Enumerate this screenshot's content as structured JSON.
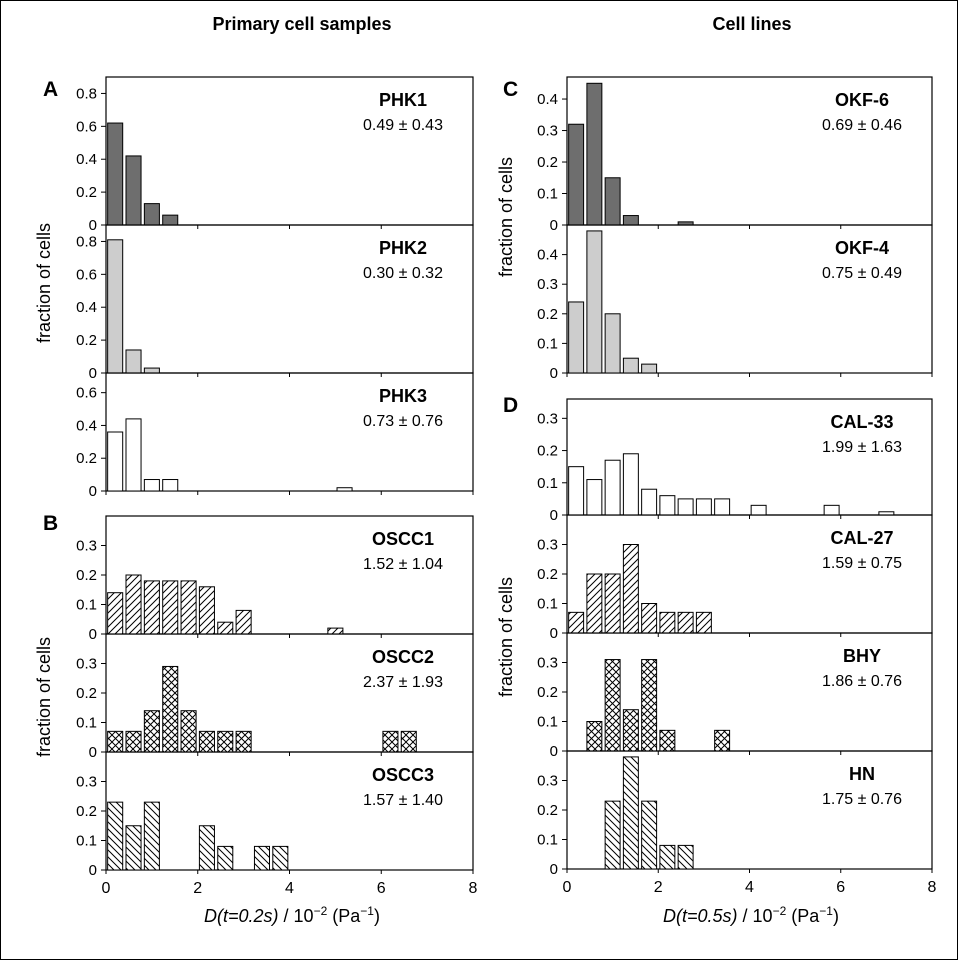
{
  "column_titles": {
    "left": "Primary cell samples",
    "right": "Cell lines"
  },
  "panel_letters": {
    "A": "A",
    "B": "B",
    "C": "C",
    "D": "D"
  },
  "ylabel": "fraction of cells",
  "xlabels": {
    "left": {
      "prefix": "D(t=0.2s)",
      "mid": " / 10",
      "exp": "−2",
      "suffix": " (Pa",
      "unit_exp": "−1",
      "close": ")"
    },
    "right": {
      "prefix": "D(t=0.5s)",
      "mid": " / 10",
      "exp": "−2",
      "suffix": " (Pa",
      "unit_exp": "−1",
      "close": ")"
    }
  },
  "x_ticks": [
    "0",
    "2",
    "4",
    "6",
    "8"
  ],
  "colors": {
    "dark": "#6e6e6e",
    "light": "#cdcdcd",
    "white": "#ffffff",
    "border": "#000000"
  },
  "chart_data": [
    {
      "type": "bar",
      "name": "PHK1",
      "stat": "0.49 ± 0.43",
      "fill": "dark",
      "group": "A",
      "bin_width": 0.4,
      "x": [
        0.2,
        0.6,
        1.0,
        1.4
      ],
      "values": [
        0.62,
        0.42,
        0.13,
        0.06
      ],
      "xlim": [
        0,
        8
      ],
      "ylim": [
        0,
        0.9
      ],
      "yticks": [
        "0",
        "0.2",
        "0.4",
        "0.6",
        "0.8"
      ]
    },
    {
      "type": "bar",
      "name": "PHK2",
      "stat": "0.30 ± 0.32",
      "fill": "light",
      "group": "A",
      "bin_width": 0.4,
      "x": [
        0.2,
        0.6,
        1.0
      ],
      "values": [
        0.81,
        0.14,
        0.03
      ],
      "xlim": [
        0,
        8
      ],
      "ylim": [
        0,
        0.9
      ],
      "yticks": [
        "0",
        "0.2",
        "0.4",
        "0.6",
        "0.8"
      ]
    },
    {
      "type": "bar",
      "name": "PHK3",
      "stat": "0.73 ± 0.76",
      "fill": "white",
      "group": "A",
      "bin_width": 0.4,
      "x": [
        0.2,
        0.6,
        1.0,
        1.4,
        5.2
      ],
      "values": [
        0.36,
        0.44,
        0.07,
        0.07,
        0.02
      ],
      "xlim": [
        0,
        8
      ],
      "ylim": [
        0,
        0.72
      ],
      "yticks": [
        "0",
        "0.2",
        "0.4",
        "0.6"
      ]
    },
    {
      "type": "bar",
      "name": "OSCC1",
      "stat": "1.52 ± 1.04",
      "fill": "hatch",
      "group": "B",
      "bin_width": 0.4,
      "x": [
        0.2,
        0.6,
        1.0,
        1.4,
        1.8,
        2.2,
        2.6,
        3.0,
        5.0
      ],
      "values": [
        0.14,
        0.2,
        0.18,
        0.18,
        0.18,
        0.16,
        0.04,
        0.08,
        0.02
      ],
      "xlim": [
        0,
        8
      ],
      "ylim": [
        0,
        0.4
      ],
      "yticks": [
        "0",
        "0.1",
        "0.2",
        "0.3"
      ]
    },
    {
      "type": "bar",
      "name": "OSCC2",
      "stat": "2.37 ± 1.93",
      "fill": "cross",
      "group": "B",
      "bin_width": 0.4,
      "x": [
        0.2,
        0.6,
        1.0,
        1.4,
        1.8,
        2.2,
        2.6,
        3.0,
        6.2,
        6.6
      ],
      "values": [
        0.07,
        0.07,
        0.14,
        0.29,
        0.14,
        0.07,
        0.07,
        0.07,
        0.07,
        0.07
      ],
      "xlim": [
        0,
        8
      ],
      "ylim": [
        0,
        0.4
      ],
      "yticks": [
        "0",
        "0.1",
        "0.2",
        "0.3"
      ]
    },
    {
      "type": "bar",
      "name": "OSCC3",
      "stat": "1.57 ± 1.40",
      "fill": "hatch-back",
      "group": "B",
      "bin_width": 0.4,
      "x": [
        0.2,
        0.6,
        1.0,
        1.4,
        2.2,
        2.6,
        3.4,
        3.8
      ],
      "values": [
        0.23,
        0.15,
        0.23,
        0.0,
        0.15,
        0.08,
        0.08,
        0.08
      ],
      "xlim": [
        0,
        8
      ],
      "ylim": [
        0,
        0.4
      ],
      "yticks": [
        "0",
        "0.1",
        "0.2",
        "0.3"
      ]
    },
    {
      "type": "bar",
      "name": "OKF-6",
      "stat": "0.69 ± 0.46",
      "fill": "dark",
      "group": "C",
      "bin_width": 0.4,
      "x": [
        0.2,
        0.6,
        1.0,
        1.4,
        1.8,
        2.6
      ],
      "values": [
        0.32,
        0.45,
        0.15,
        0.03,
        0.0,
        0.01
      ],
      "xlim": [
        0,
        8
      ],
      "ylim": [
        0,
        0.47
      ],
      "yticks": [
        "0",
        "0.1",
        "0.2",
        "0.3",
        "0.4"
      ]
    },
    {
      "type": "bar",
      "name": "OKF-4",
      "stat": "0.75 ± 0.49",
      "fill": "light",
      "group": "C",
      "bin_width": 0.4,
      "x": [
        0.2,
        0.6,
        1.0,
        1.4,
        1.8
      ],
      "values": [
        0.24,
        0.48,
        0.2,
        0.05,
        0.03
      ],
      "xlim": [
        0,
        8
      ],
      "ylim": [
        0,
        0.5
      ],
      "yticks": [
        "0",
        "0.1",
        "0.2",
        "0.3",
        "0.4"
      ]
    },
    {
      "type": "bar",
      "name": "CAL-33",
      "stat": "1.99 ± 1.63",
      "fill": "white",
      "group": "D",
      "bin_width": 0.4,
      "x": [
        0.2,
        0.6,
        1.0,
        1.4,
        1.8,
        2.2,
        2.6,
        3.0,
        3.4,
        3.8,
        4.2,
        5.0,
        5.8,
        6.2,
        7.0
      ],
      "values": [
        0.15,
        0.11,
        0.17,
        0.19,
        0.08,
        0.06,
        0.05,
        0.05,
        0.05,
        0.0,
        0.03,
        0.0,
        0.03,
        0.0,
        0.01
      ],
      "xlim": [
        0,
        8
      ],
      "ylim": [
        0,
        0.36
      ],
      "yticks": [
        "0",
        "0.1",
        "0.2",
        "0.3"
      ]
    },
    {
      "type": "bar",
      "name": "CAL-27",
      "stat": "1.59 ± 0.75",
      "fill": "hatch",
      "group": "D",
      "bin_width": 0.4,
      "x": [
        0.2,
        0.6,
        1.0,
        1.4,
        1.8,
        2.2,
        2.6,
        3.0
      ],
      "values": [
        0.07,
        0.2,
        0.2,
        0.3,
        0.1,
        0.07,
        0.07,
        0.07
      ],
      "xlim": [
        0,
        8
      ],
      "ylim": [
        0,
        0.4
      ],
      "yticks": [
        "0",
        "0.1",
        "0.2",
        "0.3"
      ]
    },
    {
      "type": "bar",
      "name": "BHY",
      "stat": "1.86 ± 0.76",
      "fill": "cross",
      "group": "D",
      "bin_width": 0.4,
      "x": [
        0.6,
        1.0,
        1.4,
        1.8,
        2.2,
        2.6,
        3.4
      ],
      "values": [
        0.1,
        0.31,
        0.14,
        0.31,
        0.07,
        0.0,
        0.07
      ],
      "xlim": [
        0,
        8
      ],
      "ylim": [
        0,
        0.4
      ],
      "yticks": [
        "0",
        "0.1",
        "0.2",
        "0.3"
      ]
    },
    {
      "type": "bar",
      "name": "HN",
      "stat": "1.75 ± 0.76",
      "fill": "hatch-back",
      "group": "D",
      "bin_width": 0.4,
      "x": [
        1.0,
        1.4,
        1.8,
        2.2,
        2.6,
        3.0
      ],
      "values": [
        0.23,
        0.38,
        0.23,
        0.08,
        0.08,
        0.0
      ],
      "xlim": [
        0,
        8
      ],
      "ylim": [
        0,
        0.4
      ],
      "yticks": [
        "0",
        "0.1",
        "0.2",
        "0.3"
      ]
    }
  ]
}
